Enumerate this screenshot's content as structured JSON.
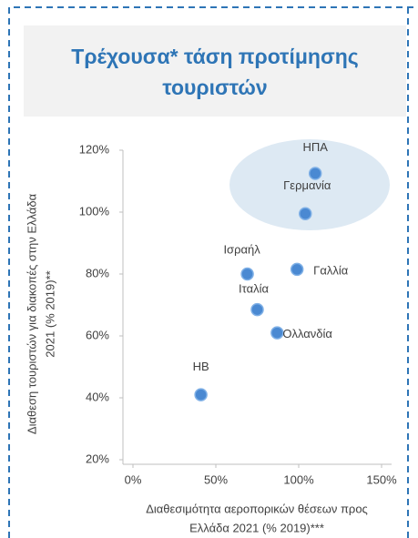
{
  "chart_data": {
    "type": "scatter",
    "title": [
      "Τρέχουσα* τάση προτίμησης",
      "τουριστών"
    ],
    "xlabel": [
      "Διαθεσιμότητα αεροπορικών θέσεων προς",
      "Ελλάδα 2021 (% 2019)***"
    ],
    "ylabel": [
      "Διαθεση τουριστών για διακοπές στην Ελλάδα",
      "2021 (% 2019)**"
    ],
    "point_labels": [
      "ΗΒ",
      "Ισραήλ",
      "Ιταλία",
      "Ολλανδία",
      "Γαλλία",
      "Γερμανία",
      "ΗΠΑ"
    ],
    "x": [
      41,
      69,
      75,
      87,
      99,
      104,
      110
    ],
    "values": [
      41,
      80,
      68.5,
      61,
      81.5,
      99.5,
      112.5
    ],
    "color": "#4a89d2",
    "xlim": [
      0,
      150
    ],
    "xticks": [
      {
        "value": 0,
        "label": "0%"
      },
      {
        "value": 50,
        "label": "50%"
      },
      {
        "value": 100,
        "label": "100%"
      },
      {
        "value": 150,
        "label": "150%"
      }
    ],
    "ylim": [
      20,
      120
    ],
    "yticks": [
      {
        "value": 20,
        "label": "20%"
      },
      {
        "value": 40,
        "label": "40%"
      },
      {
        "value": 60,
        "label": "60%"
      },
      {
        "value": 80,
        "label": "80%"
      },
      {
        "value": 100,
        "label": "100%"
      },
      {
        "value": 120,
        "label": "120%"
      }
    ]
  }
}
